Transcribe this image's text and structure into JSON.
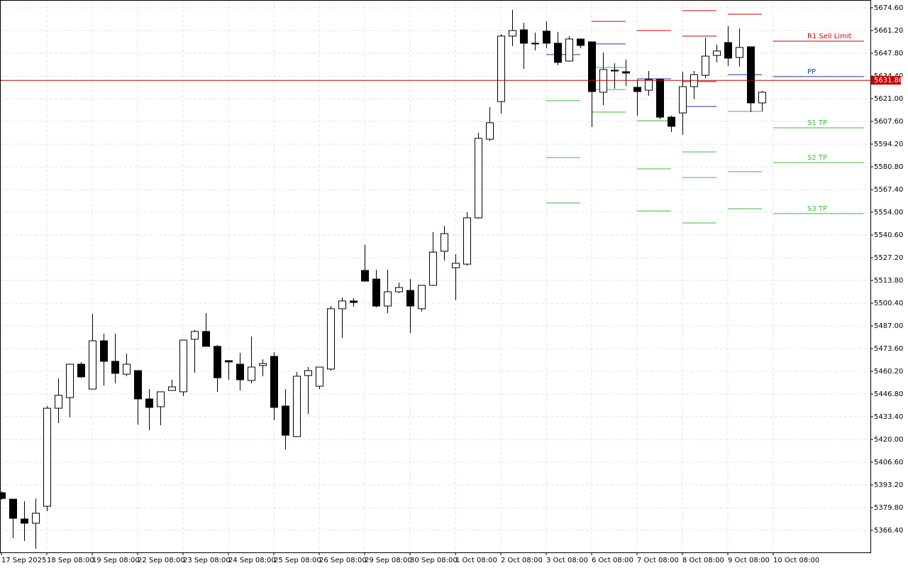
{
  "chart_data": {
    "type": "candlestick",
    "categories": [
      "17 Sep 2025",
      null,
      null,
      null,
      "18 Sep 08:00",
      null,
      null,
      null,
      "19 Sep 08:00",
      null,
      null,
      null,
      "22 Sep 08:00",
      null,
      null,
      null,
      "23 Sep 08:00",
      null,
      null,
      null,
      "24 Sep 08:00",
      null,
      null,
      null,
      "25 Sep 08:00",
      null,
      null,
      null,
      "26 Sep 08:00",
      null,
      null,
      null,
      "29 Sep 08:00",
      null,
      null,
      null,
      "30 Sep 08:00",
      null,
      null,
      null,
      "1 Oct 08:00",
      null,
      null,
      null,
      "2 Oct 08:00",
      null,
      null,
      null,
      "3 Oct 08:00",
      null,
      null,
      null,
      "6 Oct 08:00",
      null,
      null,
      null,
      "7 Oct 08:00",
      null,
      null,
      null,
      "8 Oct 08:00",
      null,
      null,
      null,
      "9 Oct 08:00",
      null,
      null,
      null,
      "10 Oct 08:00"
    ],
    "open": [
      5388.6,
      5384.8,
      5373.1,
      5370.6,
      5380.6,
      5438.4,
      5444.7,
      5464.4,
      5449.7,
      5478.2,
      5466.1,
      5458.5,
      5460.6,
      5443.9,
      5439.3,
      5448.9,
      5448.1,
      5479.1,
      5483.7,
      5474.9,
      5466.5,
      5464.4,
      5454.8,
      5463.6,
      5469.0,
      5439.7,
      5421.7,
      5457.7,
      5451.4,
      5461.5,
      5497.1,
      5501.7,
      5519.7,
      5514.6,
      5498.7,
      5507.1,
      5507.9,
      5497.1,
      5510.9,
      5531.0,
      5521.3,
      5523.4,
      5550.7,
      5597.1,
      5619.3,
      5657.9,
      5661.6,
      5653.7,
      5660.8,
      5653.7,
      5643.2,
      5656.2,
      5654.5,
      5624.8,
      5637.8,
      5636.9,
      5627.7,
      5626.0,
      5632.3,
      5610.1,
      5612.6,
      5628.1,
      5634.8,
      5646.5,
      5654.1,
      5645.3,
      5651.6,
      5618.5,
      null
    ],
    "high": [
      5389.4,
      5384.8,
      5383.6,
      5385.2,
      5439.7,
      5456.0,
      5464.4,
      5465.7,
      5494.1,
      5482.4,
      5482.4,
      5470.7,
      5460.6,
      5449.7,
      5448.1,
      5455.2,
      5478.6,
      5484.5,
      5494.5,
      5475.7,
      5466.5,
      5471.1,
      5480.7,
      5467.3,
      5471.5,
      5449.7,
      5459.8,
      5462.7,
      5462.7,
      5498.7,
      5503.8,
      5503.3,
      5534.7,
      5520.1,
      5520.1,
      5512.5,
      5514.6,
      5510.9,
      5542.3,
      5546.0,
      5529.3,
      5554.0,
      5600.9,
      5616.0,
      5659.1,
      5673.4,
      5665.8,
      5660.0,
      5666.7,
      5660.4,
      5657.9,
      5656.2,
      5654.5,
      5648.2,
      5641.9,
      5644.0,
      5632.3,
      5637.3,
      5632.3,
      5611.0,
      5636.9,
      5637.3,
      5657.0,
      5652.8,
      5663.7,
      5662.5,
      5651.6,
      5625.6,
      null
    ],
    "low": [
      5384.4,
      5361.8,
      5360.1,
      5355.5,
      5377.7,
      5429.6,
      5433.0,
      5456.4,
      5449.7,
      5451.8,
      5453.1,
      5457.3,
      5428.8,
      5425.5,
      5428.4,
      5448.9,
      5445.6,
      5459.4,
      5474.9,
      5448.1,
      5455.2,
      5448.9,
      5453.1,
      5457.3,
      5431.3,
      5414.1,
      5421.7,
      5435.1,
      5449.7,
      5460.6,
      5479.9,
      5498.3,
      5513.0,
      5497.9,
      5494.5,
      5506.3,
      5482.8,
      5495.4,
      5510.5,
      5525.5,
      5502.1,
      5522.6,
      5550.2,
      5595.9,
      5612.2,
      5652.0,
      5638.6,
      5649.5,
      5650.7,
      5640.7,
      5642.8,
      5650.7,
      5604.3,
      5617.2,
      5626.9,
      5628.5,
      5611.0,
      5622.7,
      5608.9,
      5601.3,
      5599.7,
      5620.6,
      5633.1,
      5642.4,
      5640.3,
      5639.9,
      5613.1,
      5613.5,
      null
    ],
    "close": [
      5385.2,
      5373.5,
      5370.6,
      5376.5,
      5438.4,
      5446.0,
      5464.4,
      5456.9,
      5478.2,
      5466.1,
      5459.0,
      5464.4,
      5443.9,
      5438.9,
      5448.1,
      5451.0,
      5478.6,
      5483.7,
      5474.9,
      5456.4,
      5465.7,
      5455.2,
      5462.7,
      5464.8,
      5438.9,
      5422.5,
      5457.3,
      5460.6,
      5462.7,
      5497.1,
      5501.7,
      5500.8,
      5513.4,
      5498.7,
      5507.1,
      5509.6,
      5498.7,
      5510.9,
      5530.5,
      5541.4,
      5523.9,
      5550.7,
      5597.6,
      5606.8,
      5657.9,
      5661.2,
      5653.7,
      5653.3,
      5653.7,
      5642.4,
      5656.2,
      5652.4,
      5625.2,
      5638.2,
      5637.3,
      5636.1,
      5625.2,
      5632.3,
      5610.1,
      5604.7,
      5628.1,
      5635.2,
      5646.1,
      5649.1,
      5644.9,
      5651.2,
      5618.5,
      5624.8,
      null
    ],
    "up_color": "#ffffff",
    "down_color": "#000000",
    "ylim": [
      5353.4,
      5679.2
    ],
    "yticks": [
      {
        "value": 5674.6,
        "label": "5674.60"
      },
      {
        "value": 5661.2,
        "label": "5661.20"
      },
      {
        "value": 5647.8,
        "label": "5647.80"
      },
      {
        "value": 5634.4,
        "label": "5634.40"
      },
      {
        "value": 5621.0,
        "label": "5621.00"
      },
      {
        "value": 5607.6,
        "label": "5607.60"
      },
      {
        "value": 5594.2,
        "label": "5594.20"
      },
      {
        "value": 5580.8,
        "label": "5580.80"
      },
      {
        "value": 5567.4,
        "label": "5567.40"
      },
      {
        "value": 5554.0,
        "label": "5554.00"
      },
      {
        "value": 5540.6,
        "label": "5540.60"
      },
      {
        "value": 5527.2,
        "label": "5527.20"
      },
      {
        "value": 5513.8,
        "label": "5513.80"
      },
      {
        "value": 5500.4,
        "label": "5500.40"
      },
      {
        "value": 5487.0,
        "label": "5487.00"
      },
      {
        "value": 5473.6,
        "label": "5473.60"
      },
      {
        "value": 5460.2,
        "label": "5460.20"
      },
      {
        "value": 5446.8,
        "label": "5446.80"
      },
      {
        "value": 5433.4,
        "label": "5433.40"
      },
      {
        "value": 5420.0,
        "label": "5420.00"
      },
      {
        "value": 5406.6,
        "label": "5406.60"
      },
      {
        "value": 5393.2,
        "label": "5393.20"
      },
      {
        "value": 5379.8,
        "label": "5379.80"
      },
      {
        "value": 5366.4,
        "label": "5366.40"
      }
    ],
    "grid": true,
    "current_price": {
      "value": 5631.8,
      "label": "5631.80",
      "color": "#c40000"
    },
    "levels": [
      {
        "from": "3 Oct 08:00",
        "lines": [
          {
            "value": 5647.0,
            "color": "#1a3f9e"
          },
          {
            "value": 5619.8,
            "color": "#3dbb3d"
          },
          {
            "value": 5586.3,
            "color": "#3dbb3d"
          },
          {
            "value": 5559.5,
            "color": "#3dbb3d"
          }
        ]
      },
      {
        "from": "6 Oct 08:00",
        "lines": [
          {
            "value": 5666.6,
            "color": "#d00000"
          },
          {
            "value": 5653.3,
            "color": "#1a3f9e"
          },
          {
            "value": 5639.4,
            "color": "#3dbb3d"
          },
          {
            "value": 5626.4,
            "color": "#3dbb3d"
          },
          {
            "value": 5613.1,
            "color": "#3dbb3d"
          }
        ]
      },
      {
        "from": "7 Oct 08:00",
        "lines": [
          {
            "value": 5661.2,
            "color": "#d00000"
          },
          {
            "value": 5632.7,
            "color": "#1a3f9e"
          },
          {
            "value": 5608.0,
            "color": "#3dbb3d"
          },
          {
            "value": 5579.6,
            "color": "#3dbb3d"
          },
          {
            "value": 5554.8,
            "color": "#3dbb3d"
          }
        ]
      },
      {
        "from": "8 Oct 08:00",
        "lines": [
          {
            "value": 5672.9,
            "color": "#d00000"
          },
          {
            "value": 5657.9,
            "color": "#d00000"
          },
          {
            "value": 5631.1,
            "color": "#a00000"
          },
          {
            "value": 5616.4,
            "color": "#1a3f9e"
          },
          {
            "value": 5589.6,
            "color": "#3dbb3d"
          },
          {
            "value": 5574.5,
            "color": "#3dbb3d"
          },
          {
            "value": 5547.7,
            "color": "#3dbb3d"
          }
        ]
      },
      {
        "from": "9 Oct 08:00",
        "lines": [
          {
            "value": 5670.8,
            "color": "#d00000"
          },
          {
            "value": 5635.2,
            "color": "#1a3f9e"
          },
          {
            "value": 5613.5,
            "color": "#3dbb3d"
          },
          {
            "value": 5577.9,
            "color": "#3dbb3d"
          },
          {
            "value": 5556.1,
            "color": "#3dbb3d"
          }
        ]
      },
      {
        "from": "10 Oct 08:00",
        "lines": [
          {
            "value": 5654.9,
            "color": "#d00000",
            "label": "R1 Sell Limit"
          },
          {
            "value": 5634.0,
            "color": "#1a3f9e",
            "label": "PP"
          },
          {
            "value": 5603.8,
            "color": "#3dbb3d",
            "label": "S1 TP"
          },
          {
            "value": 5583.3,
            "color": "#3dbb3d",
            "label": "S2 TP"
          },
          {
            "value": 5553.2,
            "color": "#3dbb3d",
            "label": "S3 TP"
          }
        ]
      }
    ]
  }
}
